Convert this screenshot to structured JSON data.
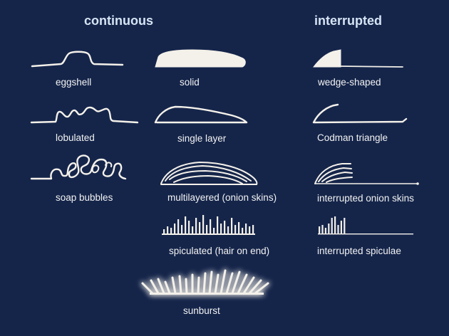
{
  "headers": {
    "continuous": "continuous",
    "interrupted": "interrupted"
  },
  "continuous": {
    "eggshell": "eggshell",
    "lobulated": "lobulated",
    "soap_bubbles": "soap bubbles",
    "solid": "solid",
    "single_layer": "single layer",
    "multilayered": "multilayered (onion skins)",
    "spiculated": "spiculated (hair on end)",
    "sunburst": "sunburst"
  },
  "interrupted": {
    "wedge_shaped": "wedge-shaped",
    "codman_triangle": "Codman triangle",
    "interrupted_onion_skins": "interrupted onion skins",
    "interrupted_spiculae": "interrupted spiculae"
  },
  "colors": {
    "background": "#15254a",
    "header_text": "#d6e4f4",
    "label_text": "#f2f2f2",
    "drawing": "#f4f1ea"
  }
}
